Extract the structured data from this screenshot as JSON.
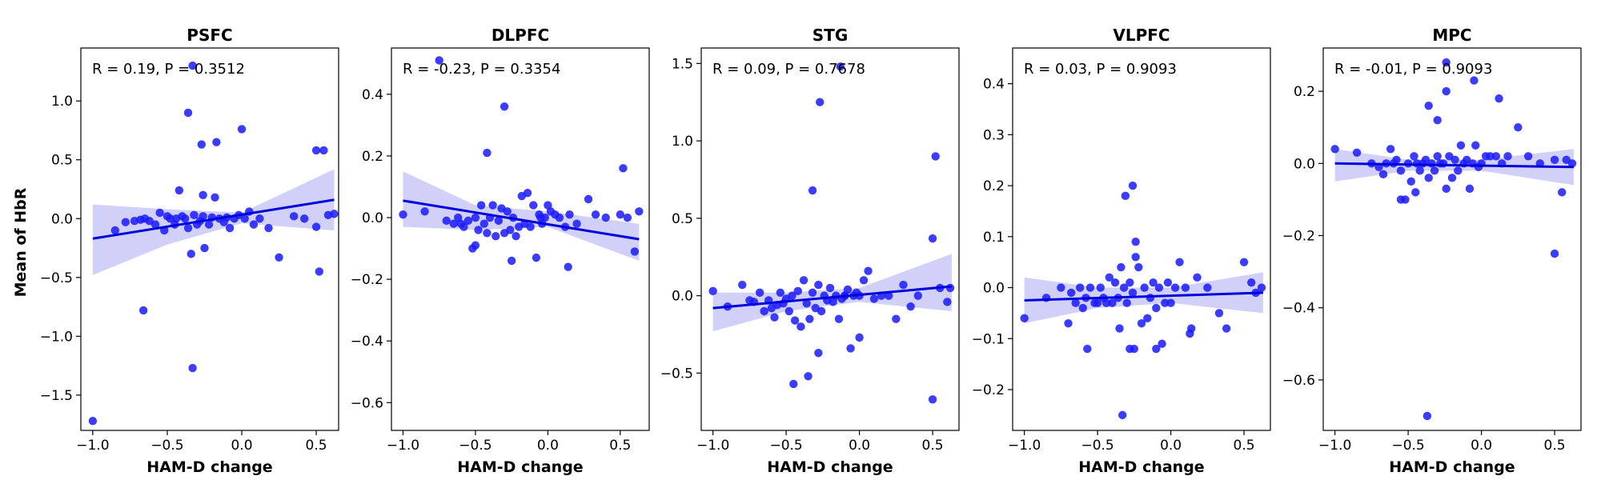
{
  "figure": {
    "ylabel": "Mean of HbR",
    "xlabel": "HAM-D change",
    "point_color": "#1a1aff",
    "line_color": "#0000dd",
    "band_color": "#c8c8f8"
  },
  "chart_data": [
    {
      "type": "scatter",
      "title": "PSFC",
      "stat": "R = 0.19, P = 0.3512",
      "xlabel": "HAM-D change",
      "ylabel": "Mean of HbR",
      "xlim": [
        -1.08,
        0.65
      ],
      "ylim": [
        -1.8,
        1.45
      ],
      "xticks": [
        -1.0,
        -0.5,
        0.0,
        0.5
      ],
      "yticks": [
        -1.5,
        -1.0,
        -0.5,
        0.0,
        0.5,
        1.0
      ],
      "fit": {
        "x": [
          -1.0,
          0.62
        ],
        "y": [
          -0.17,
          0.16
        ]
      },
      "band": {
        "x": [
          -1.0,
          -0.5,
          0.0,
          0.62
        ],
        "upper": [
          0.12,
          0.08,
          0.05,
          0.42
        ],
        "lower": [
          -0.48,
          -0.22,
          -0.04,
          -0.1
        ]
      },
      "x": [
        -1.0,
        -0.85,
        -0.78,
        -0.72,
        -0.68,
        -0.65,
        -0.62,
        -0.58,
        -0.55,
        -0.52,
        -0.5,
        -0.48,
        -0.45,
        -0.42,
        -0.4,
        -0.38,
        -0.36,
        -0.34,
        -0.32,
        -0.3,
        -0.28,
        -0.26,
        -0.25,
        -0.22,
        -0.2,
        -0.18,
        -0.15,
        -0.12,
        -0.1,
        -0.08,
        -0.05,
        -0.02,
        0.0,
        0.02,
        0.05,
        0.08,
        0.12,
        0.18,
        0.25,
        0.35,
        0.42,
        0.5,
        0.52,
        0.55,
        0.58,
        0.62,
        -0.66,
        -0.33,
        -0.27,
        -0.17,
        -0.36,
        -0.26,
        -0.44,
        0.5,
        -0.33
      ],
      "y": [
        -1.72,
        -0.1,
        -0.03,
        -0.02,
        -0.01,
        0.0,
        -0.02,
        -0.05,
        0.05,
        -0.1,
        0.02,
        0.0,
        -0.05,
        0.24,
        0.02,
        0.0,
        -0.08,
        -0.3,
        0.03,
        -0.05,
        -0.02,
        0.02,
        -0.25,
        -0.05,
        0.01,
        0.18,
        0.0,
        -0.03,
        0.01,
        -0.08,
        0.0,
        0.03,
        0.76,
        0.0,
        0.06,
        -0.05,
        0.0,
        -0.08,
        -0.33,
        0.02,
        0.0,
        -0.07,
        -0.45,
        0.58,
        0.03,
        0.04,
        -0.78,
        -1.27,
        0.63,
        0.65,
        0.9,
        0.2,
        0.0,
        0.58,
        1.3
      ]
    },
    {
      "type": "scatter",
      "title": "DLPFC",
      "stat": "R = -0.23, P = 0.3354",
      "xlabel": "HAM-D change",
      "xlim": [
        -1.08,
        0.7
      ],
      "ylim": [
        -0.69,
        0.55
      ],
      "xticks": [
        -1.0,
        -0.5,
        0.0,
        0.5
      ],
      "yticks": [
        -0.6,
        -0.4,
        -0.2,
        0.0,
        0.2,
        0.4
      ],
      "fit": {
        "x": [
          -1.0,
          0.63
        ],
        "y": [
          0.055,
          -0.07
        ]
      },
      "band": {
        "x": [
          -1.0,
          -0.5,
          0.0,
          0.63
        ],
        "upper": [
          0.15,
          0.04,
          0.02,
          -0.02
        ],
        "lower": [
          -0.03,
          -0.04,
          -0.03,
          -0.14
        ]
      },
      "x": [
        -1.0,
        -0.85,
        -0.7,
        -0.65,
        -0.62,
        -0.6,
        -0.58,
        -0.55,
        -0.52,
        -0.5,
        -0.48,
        -0.46,
        -0.44,
        -0.42,
        -0.4,
        -0.38,
        -0.36,
        -0.34,
        -0.32,
        -0.3,
        -0.28,
        -0.26,
        -0.24,
        -0.22,
        -0.2,
        -0.18,
        -0.16,
        -0.14,
        -0.12,
        -0.1,
        -0.08,
        -0.06,
        -0.04,
        -0.02,
        0.0,
        0.02,
        0.05,
        0.08,
        0.12,
        0.15,
        0.2,
        0.28,
        0.33,
        0.4,
        0.5,
        0.55,
        0.6,
        0.63,
        -0.42,
        -0.3,
        -0.5,
        -0.25,
        -0.05,
        0.52,
        0.14,
        -0.75
      ],
      "y": [
        0.01,
        0.02,
        -0.01,
        -0.02,
        0.0,
        -0.02,
        -0.03,
        -0.01,
        -0.1,
        0.0,
        -0.04,
        0.04,
        -0.02,
        -0.05,
        0.0,
        0.04,
        -0.06,
        -0.01,
        0.03,
        -0.05,
        0.02,
        -0.04,
        0.0,
        -0.06,
        -0.03,
        0.07,
        -0.02,
        0.08,
        -0.03,
        0.04,
        -0.13,
        0.01,
        -0.02,
        0.0,
        0.04,
        0.02,
        0.01,
        0.0,
        -0.03,
        0.01,
        -0.02,
        0.06,
        0.01,
        0.0,
        0.01,
        0.0,
        -0.11,
        0.02,
        0.21,
        0.36,
        -0.09,
        -0.14,
        0.0,
        0.16,
        -0.16,
        0.51
      ]
    },
    {
      "type": "scatter",
      "title": "STG",
      "stat": "R = 0.09, P = 0.7678",
      "xlabel": "HAM-D change",
      "xlim": [
        -1.08,
        0.68
      ],
      "ylim": [
        -0.87,
        1.6
      ],
      "xticks": [
        -1.0,
        -0.5,
        0.0,
        0.5
      ],
      "yticks": [
        -0.5,
        0.0,
        0.5,
        1.0,
        1.5
      ],
      "fit": {
        "x": [
          -1.0,
          0.63
        ],
        "y": [
          -0.08,
          0.06
        ]
      },
      "band": {
        "x": [
          -1.0,
          -0.5,
          0.0,
          0.63
        ],
        "upper": [
          0.02,
          0.02,
          0.05,
          0.27
        ],
        "lower": [
          -0.23,
          -0.1,
          -0.04,
          -0.1
        ]
      },
      "x": [
        -1.0,
        -0.9,
        -0.8,
        -0.75,
        -0.72,
        -0.68,
        -0.65,
        -0.62,
        -0.6,
        -0.58,
        -0.56,
        -0.54,
        -0.52,
        -0.5,
        -0.48,
        -0.46,
        -0.44,
        -0.42,
        -0.4,
        -0.38,
        -0.36,
        -0.34,
        -0.32,
        -0.3,
        -0.28,
        -0.26,
        -0.24,
        -0.22,
        -0.2,
        -0.18,
        -0.16,
        -0.14,
        -0.12,
        -0.1,
        -0.08,
        -0.06,
        -0.04,
        -0.02,
        0.0,
        0.03,
        0.06,
        0.1,
        0.15,
        0.2,
        0.25,
        0.3,
        0.35,
        0.4,
        0.5,
        0.55,
        0.6,
        0.62,
        -0.32,
        -0.27,
        -0.45,
        -0.35,
        -0.28,
        -0.1,
        0.0,
        0.52,
        0.5,
        -0.13
      ],
      "y": [
        0.03,
        -0.07,
        0.07,
        -0.03,
        -0.04,
        0.02,
        -0.1,
        -0.03,
        -0.08,
        -0.14,
        -0.06,
        0.02,
        -0.05,
        -0.02,
        -0.1,
        0.0,
        -0.16,
        0.03,
        -0.2,
        0.1,
        -0.05,
        -0.15,
        0.02,
        -0.08,
        0.07,
        -0.1,
        0.0,
        -0.03,
        0.05,
        -0.04,
        0.0,
        -0.15,
        -0.02,
        0.0,
        0.04,
        -0.34,
        0.0,
        0.02,
        -0.27,
        0.1,
        0.16,
        -0.02,
        0.0,
        0.0,
        -0.15,
        0.07,
        -0.07,
        0.0,
        0.37,
        0.05,
        -0.04,
        0.05,
        0.68,
        1.25,
        -0.57,
        -0.52,
        -0.37,
        0.0,
        0.0,
        0.9,
        -0.67,
        1.48
      ]
    },
    {
      "type": "scatter",
      "title": "VLPFC",
      "stat": "R = 0.03, P = 0.9093",
      "xlabel": "HAM-D change",
      "xlim": [
        -1.08,
        0.68
      ],
      "ylim": [
        -0.28,
        0.47
      ],
      "xticks": [
        -1.0,
        -0.5,
        0.0,
        0.5
      ],
      "yticks": [
        -0.2,
        -0.1,
        0.0,
        0.1,
        0.2,
        0.3,
        0.4
      ],
      "fit": {
        "x": [
          -1.0,
          0.63
        ],
        "y": [
          -0.025,
          -0.01
        ]
      },
      "band": {
        "x": [
          -1.0,
          -0.5,
          0.0,
          0.63
        ],
        "upper": [
          0.02,
          0.0,
          0.0,
          0.03
        ],
        "lower": [
          -0.07,
          -0.04,
          -0.03,
          -0.05
        ]
      },
      "x": [
        -1.0,
        -0.85,
        -0.75,
        -0.7,
        -0.68,
        -0.65,
        -0.62,
        -0.6,
        -0.58,
        -0.55,
        -0.52,
        -0.5,
        -0.48,
        -0.46,
        -0.44,
        -0.42,
        -0.4,
        -0.38,
        -0.36,
        -0.34,
        -0.32,
        -0.3,
        -0.28,
        -0.26,
        -0.24,
        -0.22,
        -0.2,
        -0.18,
        -0.16,
        -0.14,
        -0.12,
        -0.1,
        -0.08,
        -0.06,
        -0.04,
        -0.02,
        0.0,
        0.03,
        0.06,
        0.1,
        0.14,
        0.18,
        0.25,
        0.33,
        0.38,
        0.5,
        0.55,
        0.58,
        0.62,
        -0.31,
        -0.26,
        -0.25,
        -0.24,
        -0.35,
        -0.28,
        -0.57,
        -0.1,
        0.13,
        -0.33
      ],
      "y": [
        -0.06,
        -0.02,
        0.0,
        -0.07,
        -0.01,
        -0.03,
        0.0,
        -0.04,
        -0.02,
        0.0,
        -0.03,
        -0.03,
        0.0,
        -0.02,
        -0.03,
        0.02,
        -0.03,
        0.01,
        -0.02,
        0.04,
        0.0,
        -0.03,
        0.01,
        -0.01,
        0.09,
        0.04,
        -0.07,
        0.0,
        -0.06,
        -0.02,
        0.01,
        -0.04,
        0.0,
        -0.11,
        -0.03,
        0.01,
        -0.03,
        0.0,
        0.05,
        0.0,
        -0.08,
        0.02,
        0.0,
        -0.05,
        -0.08,
        0.05,
        0.01,
        -0.01,
        0.0,
        0.18,
        0.2,
        -0.12,
        0.06,
        -0.08,
        -0.12,
        -0.12,
        -0.12,
        -0.09,
        -0.25
      ]
    },
    {
      "type": "scatter",
      "title": "MPC",
      "stat": "R = -0.01, P = 0.9093",
      "xlabel": "HAM-D change",
      "xlim": [
        -1.08,
        0.68
      ],
      "ylim": [
        -0.74,
        0.32
      ],
      "xticks": [
        -1.0,
        -0.5,
        0.0,
        0.5
      ],
      "yticks": [
        -0.6,
        -0.4,
        -0.2,
        0.0,
        0.2
      ],
      "fit": {
        "x": [
          -1.0,
          0.63
        ],
        "y": [
          0.0,
          -0.01
        ]
      },
      "band": {
        "x": [
          -1.0,
          -0.5,
          0.0,
          0.63
        ],
        "upper": [
          0.04,
          0.01,
          0.01,
          0.04
        ],
        "lower": [
          -0.05,
          -0.02,
          -0.02,
          -0.06
        ]
      },
      "x": [
        -1.0,
        -0.85,
        -0.75,
        -0.7,
        -0.67,
        -0.65,
        -0.62,
        -0.6,
        -0.58,
        -0.55,
        -0.52,
        -0.5,
        -0.48,
        -0.46,
        -0.44,
        -0.42,
        -0.4,
        -0.38,
        -0.36,
        -0.34,
        -0.32,
        -0.3,
        -0.28,
        -0.26,
        -0.24,
        -0.22,
        -0.2,
        -0.18,
        -0.16,
        -0.14,
        -0.12,
        -0.1,
        -0.08,
        -0.06,
        -0.04,
        -0.02,
        0.0,
        0.03,
        0.06,
        0.1,
        0.14,
        0.18,
        0.25,
        0.32,
        0.4,
        0.5,
        0.55,
        0.58,
        0.62,
        -0.36,
        -0.24,
        -0.3,
        0.12,
        -0.55,
        -0.45,
        0.5,
        -0.37,
        -0.24,
        -0.05
      ],
      "y": [
        0.04,
        0.03,
        0.0,
        -0.01,
        -0.03,
        0.0,
        0.04,
        0.0,
        0.01,
        -0.02,
        -0.1,
        0.0,
        -0.05,
        0.02,
        0.0,
        -0.02,
        0.0,
        0.01,
        -0.04,
        0.0,
        -0.02,
        0.02,
        0.0,
        0.0,
        -0.07,
        0.02,
        -0.04,
        0.01,
        -0.02,
        0.05,
        0.0,
        0.01,
        -0.07,
        0.0,
        0.05,
        -0.01,
        0.0,
        0.02,
        0.02,
        0.02,
        0.0,
        0.02,
        0.1,
        0.02,
        0.0,
        0.01,
        -0.08,
        0.01,
        0.0,
        0.16,
        0.2,
        0.12,
        0.18,
        -0.1,
        -0.08,
        -0.25,
        -0.7,
        0.28,
        0.23
      ]
    }
  ]
}
